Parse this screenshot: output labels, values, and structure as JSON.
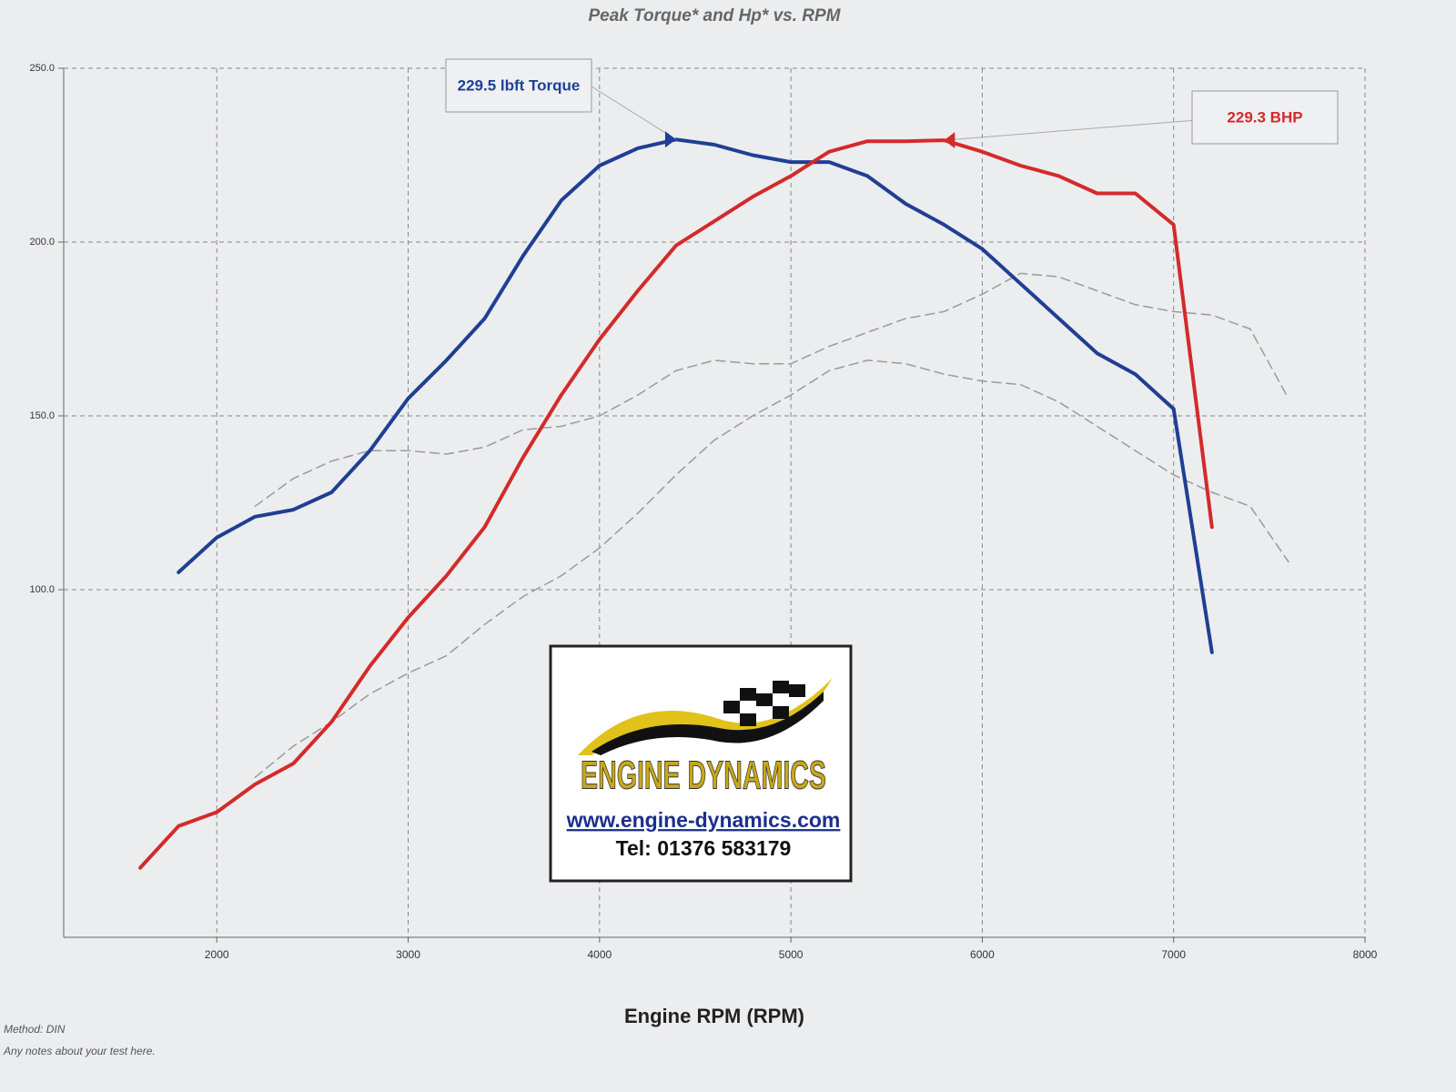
{
  "chart_data": {
    "type": "line",
    "title": "Peak Torque* and Hp* vs. RPM",
    "xlabel": "Engine RPM (RPM)",
    "x": [
      1600,
      1800,
      2000,
      2200,
      2400,
      2600,
      2800,
      3000,
      3200,
      3400,
      3600,
      3800,
      4000,
      4200,
      4400,
      4600,
      4800,
      5000,
      5200,
      5400,
      5600,
      5800,
      6000,
      6200,
      6400,
      6600,
      6800,
      7000,
      7200,
      7400,
      7600
    ],
    "series": [
      {
        "color": "#1f3f94",
        "width": 4,
        "annotation": "229.5 lbft Torque",
        "values": [
          null,
          105,
          115,
          121,
          123,
          128,
          140,
          155,
          166,
          178,
          196,
          212,
          222,
          227,
          229.5,
          228,
          225,
          223,
          223,
          219,
          211,
          205,
          198,
          188,
          178,
          168,
          162,
          152,
          82,
          null,
          null
        ]
      },
      {
        "color": "#d42a2a",
        "width": 4,
        "annotation": "229.3 BHP",
        "values": [
          20,
          32,
          36,
          44,
          50,
          62,
          78,
          92,
          104,
          118,
          138,
          156,
          172,
          186,
          199,
          206,
          213,
          219,
          226,
          229,
          229,
          229.3,
          226,
          222,
          219,
          214,
          214,
          205,
          118,
          null,
          null
        ]
      },
      {
        "color": "#9a9a9a",
        "width": 1.5,
        "dashed": true,
        "values": [
          null,
          null,
          null,
          124,
          132,
          137,
          140,
          140,
          139,
          141,
          146,
          147,
          150,
          156,
          163,
          166,
          165,
          165,
          170,
          174,
          178,
          180,
          185,
          191,
          190,
          186,
          182,
          180,
          179,
          175,
          155
        ]
      },
      {
        "color": "#9a9a9a",
        "width": 1.5,
        "dashed": true,
        "values": [
          null,
          null,
          null,
          46,
          55,
          62,
          70,
          76,
          81,
          90,
          98,
          104,
          112,
          122,
          133,
          143,
          150,
          156,
          163,
          166,
          165,
          162,
          160,
          159,
          154,
          147,
          140,
          133,
          128,
          124,
          108
        ]
      }
    ],
    "xlim": [
      1200,
      8000
    ],
    "xticks": [
      2000,
      3000,
      4000,
      5000,
      6000,
      7000,
      8000
    ],
    "ylim": [
      0,
      250
    ],
    "yticks": [
      {
        "value": 100,
        "label": "100.0"
      },
      {
        "value": 150,
        "label": "150.0"
      },
      {
        "value": 200,
        "label": "200.0"
      },
      {
        "value": 250,
        "label": "250.0"
      }
    ],
    "grid": true,
    "notes": [
      "Method: DIN",
      "Any notes about your test here."
    ]
  },
  "logo": {
    "name": "ENGINE DYNAMICS",
    "url": "www.engine-dynamics.com",
    "phone": "Tel: 01376 583179"
  }
}
